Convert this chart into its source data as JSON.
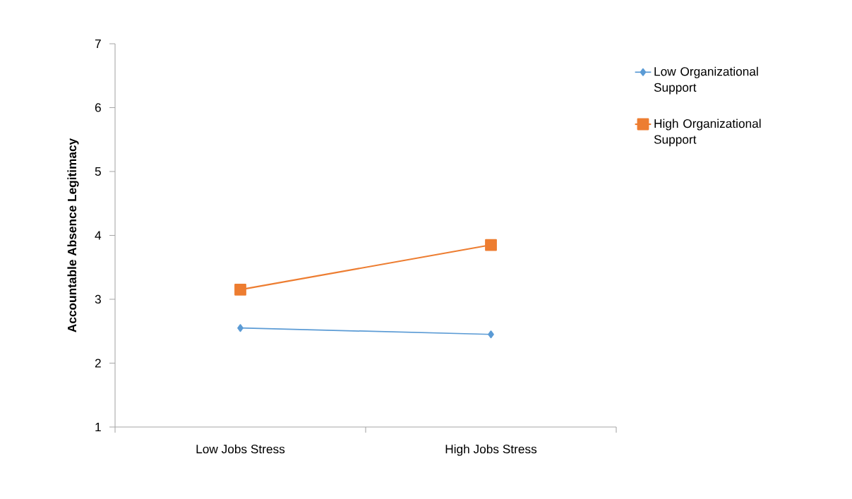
{
  "chart_data": {
    "type": "line",
    "ylabel": "Accountable Absence Legitimacy",
    "categories": [
      "Low Jobs Stress",
      "High Jobs Stress"
    ],
    "series": [
      {
        "name": "Low Organizational Support",
        "color": "#5b9bd5",
        "marker": "diamond",
        "values": [
          2.55,
          2.45
        ]
      },
      {
        "name": "High Organizational Support",
        "color": "#ed7d31",
        "marker": "square",
        "values": [
          3.15,
          3.85
        ]
      }
    ],
    "ylim": [
      1,
      7
    ],
    "yticks": [
      1,
      2,
      3,
      4,
      5,
      6,
      7
    ],
    "grid": false,
    "legend": "right",
    "line_style": "solid"
  }
}
